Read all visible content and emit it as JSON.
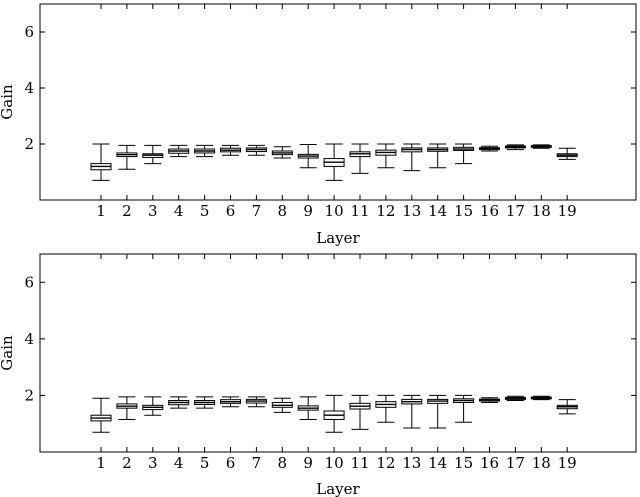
{
  "chart_data": [
    {
      "type": "box",
      "xlabel": "Layer",
      "ylabel": "Gain",
      "ylim": [
        0,
        7
      ],
      "yticks": [
        2,
        4,
        6
      ],
      "categories": [
        "1",
        "2",
        "3",
        "4",
        "5",
        "6",
        "7",
        "8",
        "9",
        "10",
        "11",
        "12",
        "13",
        "14",
        "15",
        "16",
        "17",
        "18",
        "19"
      ],
      "boxes": [
        {
          "min": 0.7,
          "q1": 1.08,
          "median": 1.2,
          "q3": 1.3,
          "max": 2.0
        },
        {
          "min": 1.1,
          "q1": 1.55,
          "median": 1.62,
          "q3": 1.68,
          "max": 1.95
        },
        {
          "min": 1.3,
          "q1": 1.52,
          "median": 1.6,
          "q3": 1.65,
          "max": 1.95
        },
        {
          "min": 1.55,
          "q1": 1.67,
          "median": 1.75,
          "q3": 1.82,
          "max": 1.95
        },
        {
          "min": 1.55,
          "q1": 1.68,
          "median": 1.75,
          "q3": 1.82,
          "max": 1.95
        },
        {
          "min": 1.6,
          "q1": 1.72,
          "median": 1.78,
          "q3": 1.85,
          "max": 1.95
        },
        {
          "min": 1.6,
          "q1": 1.73,
          "median": 1.8,
          "q3": 1.86,
          "max": 1.95
        },
        {
          "min": 1.5,
          "q1": 1.62,
          "median": 1.68,
          "q3": 1.75,
          "max": 1.9
        },
        {
          "min": 1.15,
          "q1": 1.5,
          "median": 1.57,
          "q3": 1.63,
          "max": 1.98
        },
        {
          "min": 0.7,
          "q1": 1.2,
          "median": 1.35,
          "q3": 1.48,
          "max": 2.0
        },
        {
          "min": 0.95,
          "q1": 1.55,
          "median": 1.65,
          "q3": 1.72,
          "max": 2.0
        },
        {
          "min": 1.15,
          "q1": 1.6,
          "median": 1.7,
          "q3": 1.78,
          "max": 2.0
        },
        {
          "min": 1.05,
          "q1": 1.72,
          "median": 1.8,
          "q3": 1.86,
          "max": 2.0
        },
        {
          "min": 1.15,
          "q1": 1.74,
          "median": 1.8,
          "q3": 1.86,
          "max": 2.0
        },
        {
          "min": 1.3,
          "q1": 1.77,
          "median": 1.82,
          "q3": 1.88,
          "max": 2.0
        },
        {
          "min": 1.75,
          "q1": 1.8,
          "median": 1.84,
          "q3": 1.87,
          "max": 1.92
        },
        {
          "min": 1.8,
          "q1": 1.86,
          "median": 1.9,
          "q3": 1.93,
          "max": 1.97
        },
        {
          "min": 1.85,
          "q1": 1.88,
          "median": 1.91,
          "q3": 1.94,
          "max": 1.97
        },
        {
          "min": 1.45,
          "q1": 1.55,
          "median": 1.6,
          "q3": 1.65,
          "max": 1.85
        }
      ]
    },
    {
      "type": "box",
      "xlabel": "Layer",
      "ylabel": "Gain",
      "ylim": [
        0,
        7
      ],
      "yticks": [
        2,
        4,
        6
      ],
      "categories": [
        "1",
        "2",
        "3",
        "4",
        "5",
        "6",
        "7",
        "8",
        "9",
        "10",
        "11",
        "12",
        "13",
        "14",
        "15",
        "16",
        "17",
        "18",
        "19"
      ],
      "boxes": [
        {
          "min": 0.7,
          "q1": 1.1,
          "median": 1.2,
          "q3": 1.3,
          "max": 1.9
        },
        {
          "min": 1.15,
          "q1": 1.55,
          "median": 1.62,
          "q3": 1.7,
          "max": 1.95
        },
        {
          "min": 1.3,
          "q1": 1.5,
          "median": 1.58,
          "q3": 1.65,
          "max": 1.95
        },
        {
          "min": 1.55,
          "q1": 1.67,
          "median": 1.75,
          "q3": 1.82,
          "max": 1.95
        },
        {
          "min": 1.55,
          "q1": 1.68,
          "median": 1.75,
          "q3": 1.82,
          "max": 1.95
        },
        {
          "min": 1.6,
          "q1": 1.72,
          "median": 1.78,
          "q3": 1.85,
          "max": 1.95
        },
        {
          "min": 1.6,
          "q1": 1.73,
          "median": 1.8,
          "q3": 1.86,
          "max": 1.95
        },
        {
          "min": 1.4,
          "q1": 1.58,
          "median": 1.65,
          "q3": 1.75,
          "max": 1.9
        },
        {
          "min": 1.15,
          "q1": 1.48,
          "median": 1.55,
          "q3": 1.63,
          "max": 1.95
        },
        {
          "min": 0.7,
          "q1": 1.15,
          "median": 1.3,
          "q3": 1.45,
          "max": 2.0
        },
        {
          "min": 0.8,
          "q1": 1.52,
          "median": 1.62,
          "q3": 1.72,
          "max": 2.0
        },
        {
          "min": 1.05,
          "q1": 1.58,
          "median": 1.68,
          "q3": 1.78,
          "max": 2.0
        },
        {
          "min": 0.85,
          "q1": 1.7,
          "median": 1.78,
          "q3": 1.86,
          "max": 2.0
        },
        {
          "min": 0.85,
          "q1": 1.72,
          "median": 1.8,
          "q3": 1.86,
          "max": 2.0
        },
        {
          "min": 1.05,
          "q1": 1.75,
          "median": 1.82,
          "q3": 1.88,
          "max": 2.0
        },
        {
          "min": 1.75,
          "q1": 1.8,
          "median": 1.84,
          "q3": 1.87,
          "max": 1.92
        },
        {
          "min": 1.82,
          "q1": 1.86,
          "median": 1.9,
          "q3": 1.93,
          "max": 1.97
        },
        {
          "min": 1.85,
          "q1": 1.88,
          "median": 1.91,
          "q3": 1.94,
          "max": 1.97
        },
        {
          "min": 1.35,
          "q1": 1.53,
          "median": 1.6,
          "q3": 1.65,
          "max": 1.85
        }
      ]
    }
  ]
}
